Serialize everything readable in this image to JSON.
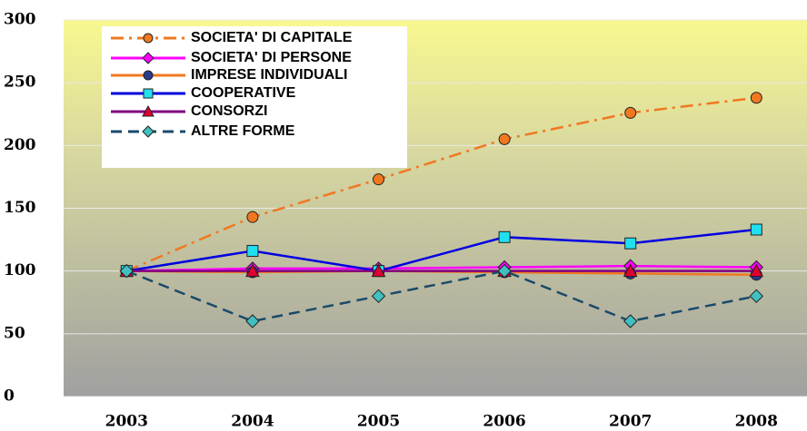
{
  "chart_data": {
    "type": "line",
    "categories": [
      "2003",
      "2004",
      "2005",
      "2006",
      "2007",
      "2008"
    ],
    "ylim": [
      0,
      300
    ],
    "yticks": [
      0,
      50,
      100,
      150,
      200,
      250,
      300
    ],
    "grid": true,
    "legend": "top-left",
    "series": [
      {
        "name": "SOCIETA' DI CAPITALE",
        "color": "#f07820",
        "marker": "circle",
        "marker_color": "#f07820",
        "dash": "dashdot",
        "values": [
          100,
          143,
          173,
          205,
          226,
          238
        ]
      },
      {
        "name": "SOCIETA' DI PERSONE",
        "color": "#ff00ff",
        "marker": "diamond",
        "marker_color": "#ff00ff",
        "dash": "solid",
        "values": [
          100,
          102,
          102,
          103,
          104,
          103
        ]
      },
      {
        "name": "IMPRESE INDIVIDUALI",
        "color": "#f07820",
        "marker": "circle",
        "marker_color": "#2a3a90",
        "dash": "solid",
        "values": [
          100,
          99,
          100,
          99,
          98,
          97
        ]
      },
      {
        "name": "COOPERATIVE",
        "color": "#0000e0",
        "marker": "square",
        "marker_color": "#20e0f0",
        "dash": "solid",
        "values": [
          100,
          116,
          100,
          127,
          122,
          133
        ]
      },
      {
        "name": "CONSORZI",
        "color": "#800080",
        "marker": "triangle",
        "marker_color": "#e00030",
        "dash": "solid",
        "values": [
          100,
          100,
          100,
          100,
          100,
          100
        ]
      },
      {
        "name": "ALTRE FORME",
        "color": "#1a4a6a",
        "marker": "diamond",
        "marker_color": "#40c0c0",
        "dash": "dash",
        "values": [
          100,
          60,
          80,
          100,
          60,
          80
        ]
      }
    ]
  }
}
